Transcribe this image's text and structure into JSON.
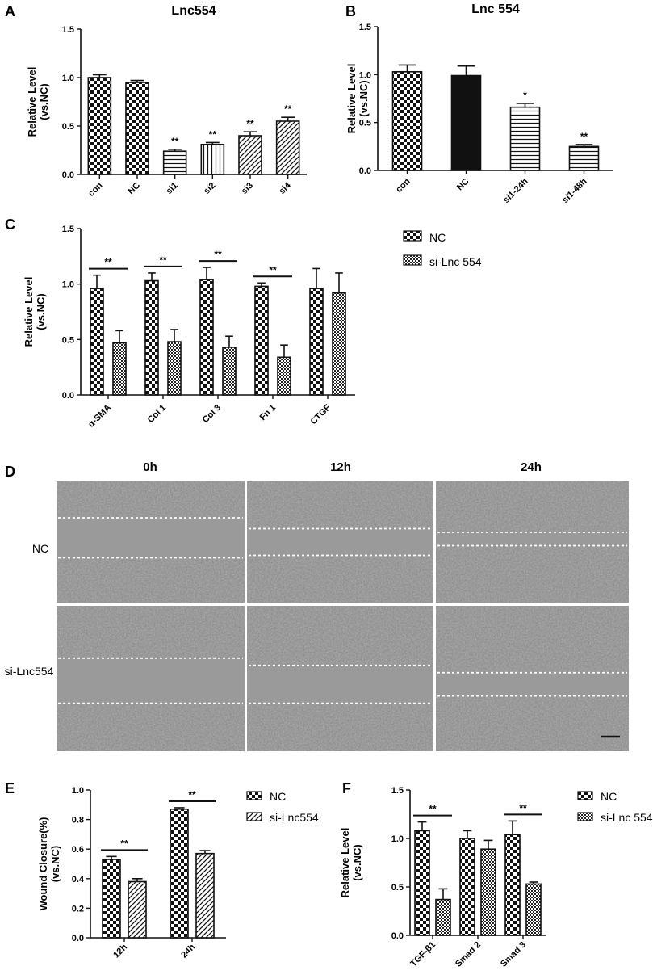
{
  "panel_labels": {
    "A": "A",
    "B": "B",
    "C": "C",
    "D": "D",
    "E": "E",
    "F": "F"
  },
  "micrographs": {
    "time_labels": [
      "0h",
      "12h",
      "24h"
    ],
    "row_labels": [
      "NC",
      "si-Lnc554"
    ]
  },
  "colors": {
    "bar_edge": "#111111",
    "dashed_line": "#ffffff",
    "micro_bg": "#8d8d8d",
    "gap_bg": "#9a9a9a"
  },
  "chart_data": [
    {
      "id": "A",
      "type": "bar",
      "title": "Lnc554",
      "ylabel_line1": "Relative Level",
      "ylabel_line2": "(vs.NC)",
      "ylim": [
        0,
        1.5
      ],
      "yticks": [
        "0.0",
        "0.5",
        "1.0",
        "1.5"
      ],
      "categories": [
        "con",
        "NC",
        "si1",
        "si2",
        "si3",
        "si4"
      ],
      "series": [
        {
          "values": [
            1.0,
            0.95,
            0.24,
            0.31,
            0.4,
            0.55
          ],
          "errors": [
            0.03,
            0.02,
            0.02,
            0.02,
            0.04,
            0.04
          ],
          "patterns": [
            "check",
            "check",
            "hline",
            "vline",
            "diag",
            "diag"
          ]
        }
      ],
      "significance": [
        "",
        "",
        "**",
        "**",
        "**",
        "**"
      ]
    },
    {
      "id": "B",
      "type": "bar",
      "title": "Lnc 554",
      "ylabel_line1": "Relative Level",
      "ylabel_line2": "(vs.NC)",
      "ylim": [
        0,
        1.5
      ],
      "yticks": [
        "0.0",
        "0.5",
        "1.0",
        "1.5"
      ],
      "categories": [
        "con",
        "NC",
        "si1-24h",
        "si1-48h"
      ],
      "series": [
        {
          "values": [
            1.03,
            0.99,
            0.66,
            0.25
          ],
          "errors": [
            0.07,
            0.1,
            0.04,
            0.02
          ],
          "patterns": [
            "check",
            "solid",
            "hline",
            "hline"
          ]
        }
      ],
      "significance": [
        "",
        "",
        "*",
        "**"
      ]
    },
    {
      "id": "C",
      "type": "bar",
      "title": "",
      "ylabel_line1": "Relative Level",
      "ylabel_line2": "(vs.NC)",
      "ylim": [
        0,
        1.5
      ],
      "yticks": [
        "0.0",
        "0.5",
        "1.0",
        "1.5"
      ],
      "categories": [
        "α-SMA",
        "Col 1",
        "Col 3",
        "Fn 1",
        "CTGF"
      ],
      "series": [
        {
          "name": "NC",
          "values": [
            0.96,
            1.03,
            1.04,
            0.98,
            0.96
          ],
          "errors": [
            0.12,
            0.07,
            0.11,
            0.03,
            0.18
          ],
          "pattern": "check"
        },
        {
          "name": "si-Lnc 554",
          "values": [
            0.47,
            0.48,
            0.43,
            0.34,
            0.92
          ],
          "errors": [
            0.11,
            0.11,
            0.1,
            0.11,
            0.18
          ],
          "pattern": "finecheck"
        }
      ],
      "significance": [
        "**",
        "**",
        "**",
        "**",
        ""
      ],
      "legend": "right"
    },
    {
      "id": "E",
      "type": "bar",
      "title": "",
      "ylabel_line1": "Wound Closure(%)",
      "ylabel_line2": "(vs.NC)",
      "ylim": [
        0,
        1.0
      ],
      "yticks": [
        "0.0",
        "0.2",
        "0.4",
        "0.6",
        "0.8",
        "1.0"
      ],
      "categories": [
        "12h",
        "24h"
      ],
      "series": [
        {
          "name": "NC",
          "values": [
            0.53,
            0.87
          ],
          "errors": [
            0.02,
            0.01
          ],
          "pattern": "check"
        },
        {
          "name": "si-Lnc554",
          "values": [
            0.38,
            0.57
          ],
          "errors": [
            0.02,
            0.02
          ],
          "pattern": "diag"
        }
      ],
      "significance": [
        "**",
        "**"
      ],
      "legend": "right"
    },
    {
      "id": "F",
      "type": "bar",
      "title": "",
      "ylabel_line1": "Relative Level",
      "ylabel_line2": "(vs.NC)",
      "ylim": [
        0,
        1.5
      ],
      "yticks": [
        "0.0",
        "0.5",
        "1.0",
        "1.5"
      ],
      "categories": [
        "TGF-β1",
        "Smad 2",
        "Smad 3"
      ],
      "series": [
        {
          "name": "NC",
          "values": [
            1.08,
            1.0,
            1.04
          ],
          "errors": [
            0.09,
            0.08,
            0.14
          ],
          "pattern": "check"
        },
        {
          "name": "si-Lnc 554",
          "values": [
            0.37,
            0.89,
            0.53
          ],
          "errors": [
            0.11,
            0.09,
            0.02
          ],
          "pattern": "finecheck"
        }
      ],
      "significance": [
        "**",
        "",
        "**"
      ],
      "legend": "right"
    }
  ]
}
